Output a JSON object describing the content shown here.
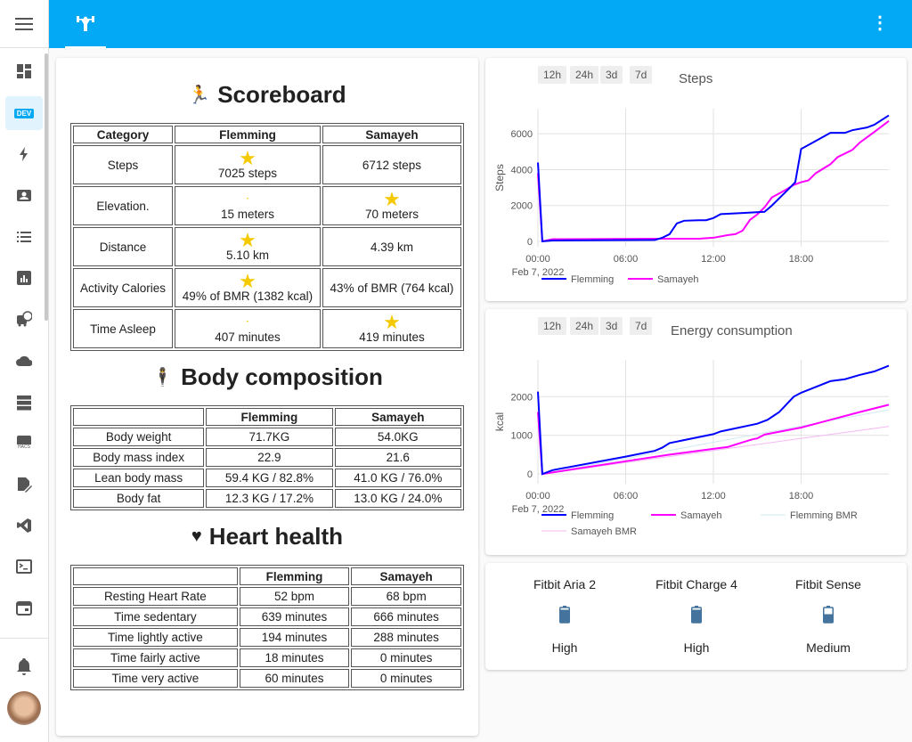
{
  "sidebar": {
    "items": [
      "dashboard-icon",
      "developer-tools-icon",
      "energy-icon",
      "person-icon",
      "logbook-icon",
      "history-icon",
      "calendar-clock-icon",
      "cloud-icon",
      "server-icon",
      "hacs-icon",
      "file-edit-icon",
      "vscode-icon",
      "terminal-icon",
      "calendar-icon"
    ],
    "dev_label": "DEV",
    "hacs_label": "HACS",
    "accent": "#03a9f4"
  },
  "header": {
    "tab_icon": "weight-lifter-icon",
    "menu_icon": "dots-vertical-icon"
  },
  "scoreboard": {
    "title": "Scoreboard",
    "headers": [
      "Category",
      "Flemming",
      "Samayeh"
    ],
    "rows": [
      {
        "label": "Steps",
        "a": "7025 steps",
        "b": "6712 steps",
        "winner": "a"
      },
      {
        "label": "Elevation.",
        "a": "15 meters",
        "b": "70 meters",
        "winner": "b"
      },
      {
        "label": "Distance",
        "a": "5.10 km",
        "b": "4.39 km",
        "winner": "a"
      },
      {
        "label": "Activity Calories",
        "a": "49% of BMR (1382 kcal)",
        "b": "43% of BMR (764 kcal)",
        "winner": "a"
      },
      {
        "label": "Time Asleep",
        "a": "407 minutes",
        "b": "419 minutes",
        "winner": "b"
      }
    ]
  },
  "body": {
    "title": "Body composition",
    "headers": [
      "",
      "Flemming",
      "Samayeh"
    ],
    "rows": [
      [
        "Body weight",
        "71.7KG",
        "54.0KG"
      ],
      [
        "Body mass index",
        "22.9",
        "21.6"
      ],
      [
        "Lean body mass",
        "59.4 KG / 82.8%",
        "41.0 KG / 76.0%"
      ],
      [
        "Body fat",
        "12.3 KG / 17.2%",
        "13.0 KG / 24.0%"
      ]
    ]
  },
  "heart": {
    "title": "Heart health",
    "headers": [
      "",
      "Flemming",
      "Samayeh"
    ],
    "rows": [
      [
        "Resting Heart Rate",
        "52 bpm",
        "68 bpm"
      ],
      [
        "Time sedentary",
        "639 minutes",
        "666 minutes"
      ],
      [
        "Time lightly active",
        "194 minutes",
        "288 minutes"
      ],
      [
        "Time fairly active",
        "18 minutes",
        "0 minutes"
      ],
      [
        "Time very active",
        "60 minutes",
        "0 minutes"
      ]
    ]
  },
  "range_buttons": [
    "12h",
    "24h",
    "3d",
    "7d"
  ],
  "chart_data": [
    {
      "type": "line",
      "title": "Steps",
      "ylabel": "Steps",
      "xlabel": "",
      "x_ticks": [
        "00:00",
        "06:00",
        "12:00",
        "18:00"
      ],
      "x_date": "Feb 7, 2022",
      "x_unit": "hour",
      "xlim": [
        0,
        24
      ],
      "ylim": [
        -300,
        7400
      ],
      "y_ticks": [
        0,
        2000,
        4000,
        6000
      ],
      "grid": true,
      "legend": "bottom",
      "series": [
        {
          "name": "Flemming",
          "color": "#0000ff",
          "width": 2,
          "x": [
            0,
            0.3,
            1,
            8,
            8.5,
            9,
            9.5,
            10,
            11,
            11.5,
            12,
            12.5,
            14,
            15.5,
            16,
            17,
            17.6,
            18,
            19,
            20,
            21,
            21.5,
            22.5,
            23,
            24
          ],
          "y": [
            4400,
            0,
            50,
            80,
            200,
            400,
            1000,
            1150,
            1180,
            1180,
            1300,
            1520,
            1580,
            1650,
            2000,
            2800,
            3300,
            5150,
            5600,
            6050,
            6050,
            6200,
            6350,
            6500,
            7025
          ]
        },
        {
          "name": "Samayeh",
          "color": "#ff00ff",
          "width": 2,
          "x": [
            0,
            0.3,
            1,
            8,
            11,
            12,
            13,
            13.5,
            14,
            14.5,
            15,
            15.5,
            16,
            17,
            17.5,
            18,
            18.5,
            19,
            20,
            20.5,
            21,
            21.5,
            22,
            23,
            24
          ],
          "y": [
            3800,
            0,
            120,
            150,
            150,
            200,
            350,
            400,
            600,
            1200,
            1500,
            1900,
            2450,
            2900,
            3150,
            3300,
            3400,
            3800,
            4300,
            4700,
            4900,
            5100,
            5500,
            6100,
            6712
          ]
        }
      ]
    },
    {
      "type": "line",
      "title": "Energy consumption",
      "ylabel": "kcal",
      "xlabel": "",
      "x_ticks": [
        "00:00",
        "06:00",
        "12:00",
        "18:00"
      ],
      "x_date": "Feb 7, 2022",
      "x_unit": "hour",
      "xlim": [
        0,
        24
      ],
      "ylim": [
        -250,
        2950
      ],
      "y_ticks": [
        0,
        1000,
        2000
      ],
      "grid": true,
      "legend": "bottom",
      "series": [
        {
          "name": "Flemming",
          "color": "#0000ff",
          "width": 2,
          "x": [
            0,
            0.3,
            1,
            6,
            8,
            8.5,
            9,
            12,
            12.5,
            15,
            15.7,
            16.5,
            17.5,
            18,
            19,
            20,
            21,
            22,
            23,
            24
          ],
          "y": [
            2130,
            0,
            100,
            450,
            600,
            680,
            800,
            1030,
            1100,
            1300,
            1400,
            1600,
            2000,
            2100,
            2250,
            2400,
            2450,
            2560,
            2650,
            2800
          ]
        },
        {
          "name": "Samayeh",
          "color": "#ff00ff",
          "width": 2,
          "x": [
            0,
            0.3,
            6,
            9,
            12,
            13,
            14,
            14.7,
            15,
            15.5,
            18,
            19,
            20,
            21,
            22,
            24
          ],
          "y": [
            1600,
            0,
            330,
            500,
            650,
            700,
            820,
            900,
            920,
            1020,
            1200,
            1300,
            1400,
            1500,
            1600,
            1790
          ]
        },
        {
          "name": "Flemming BMR",
          "color": "#cfeaf2",
          "width": 1,
          "x": [
            0.3,
            24
          ],
          "y": [
            0,
            1660
          ]
        },
        {
          "name": "Samayeh BMR",
          "color": "#f5b8f5",
          "width": 1,
          "x": [
            0.3,
            24
          ],
          "y": [
            0,
            1230
          ]
        }
      ]
    }
  ],
  "devices": [
    {
      "name": "Fitbit Aria 2",
      "level": "High",
      "icon": "battery-high-icon"
    },
    {
      "name": "Fitbit Charge 4",
      "level": "High",
      "icon": "battery-high-icon"
    },
    {
      "name": "Fitbit Sense",
      "level": "Medium",
      "icon": "battery-medium-icon"
    }
  ]
}
